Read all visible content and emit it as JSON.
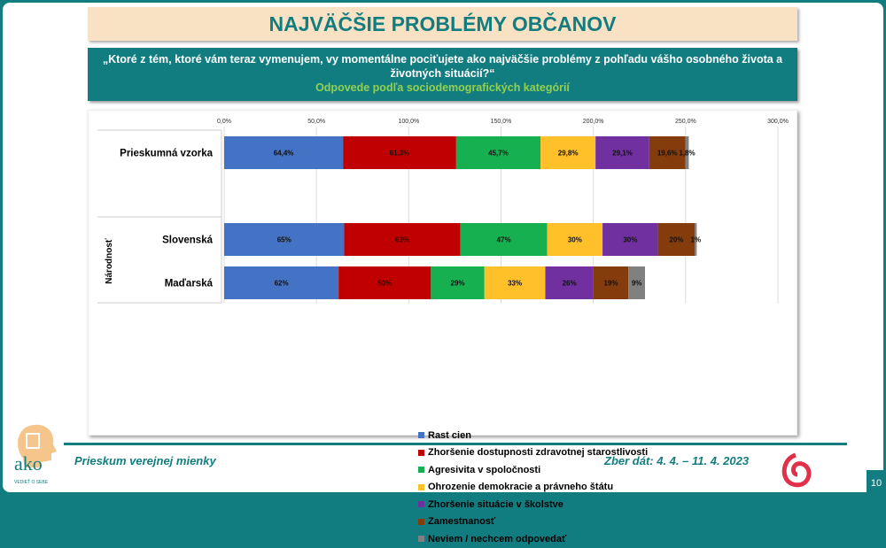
{
  "title": "NAJVÄČŠIE PROBLÉMY OBČANOV",
  "question": "„Ktoré z tém, ktoré vám teraz vymenujem, vy momentálne pociťujete ako najväčšie problémy z pohľadu vášho osobného života a životných situácií?“",
  "subtitle": "Odpovede podľa sociodemografických kategórií",
  "footer": {
    "left": "Prieskum verejnej mienky",
    "right": "Zber dát: 4. 4. – 11. 4. 2023",
    "page": "10",
    "logo_text": "ako",
    "logo_tagline": "VEDIEŤ O SEBE"
  },
  "chart_data": {
    "type": "bar",
    "orientation": "horizontal",
    "stacked": true,
    "xlim": [
      0,
      300
    ],
    "ticks": [
      "0,0%",
      "50,0%",
      "100,0%",
      "150,0%",
      "200,0%",
      "250,0%",
      "300,0%"
    ],
    "tick_values": [
      0,
      50,
      100,
      150,
      200,
      250,
      300
    ],
    "grid": true,
    "legend_position": "bottom",
    "group_label": "Národnosť",
    "categories": [
      "Prieskumná vzorka",
      "Slovenská",
      "Maďarská"
    ],
    "labels": [
      [
        "64,4%",
        "61,3%",
        "45,7%",
        "29,8%",
        "29,1%",
        "19,6%",
        "1,8%"
      ],
      [
        "65%",
        "63%",
        "47%",
        "30%",
        "30%",
        "20%",
        "1%"
      ],
      [
        "62%",
        "50%",
        "29%",
        "33%",
        "26%",
        "19%",
        "9%"
      ]
    ],
    "series": [
      {
        "name": "Rast cien",
        "color": "#4472c4",
        "values": [
          64.4,
          65,
          62
        ]
      },
      {
        "name": "Zhoršenie dostupnosti zdravotnej starostlivosti",
        "color": "#c00000",
        "values": [
          61.3,
          63,
          50
        ]
      },
      {
        "name": "Agresivita v spoločnosti",
        "color": "#17b050",
        "values": [
          45.7,
          47,
          29
        ]
      },
      {
        "name": "Ohrozenie demokracie a právneho štátu",
        "color": "#ffc02a",
        "values": [
          29.8,
          30,
          33
        ]
      },
      {
        "name": "Zhoršenie situácie v školstve",
        "color": "#7030a0",
        "values": [
          29.1,
          30,
          26
        ]
      },
      {
        "name": "Zamestnanosť",
        "color": "#843c0c",
        "values": [
          19.6,
          20,
          19
        ]
      },
      {
        "name": "Neviem / nechcem odpovedať",
        "color": "#808080",
        "values": [
          1.8,
          1,
          9
        ]
      }
    ]
  }
}
